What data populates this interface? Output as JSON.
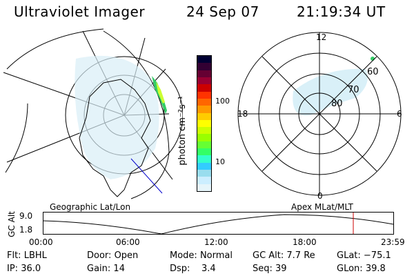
{
  "header": {
    "instrument": "Ultraviolet Imager",
    "date": "24 Sep 07",
    "time": "21:19:34 UT"
  },
  "colorbar": {
    "unit_label": "photon cm⁻²s⁻¹",
    "ticks": [
      "100",
      "10"
    ],
    "colors": [
      "#000033",
      "#330033",
      "#660033",
      "#990033",
      "#cc0000",
      "#ff3300",
      "#ff6600",
      "#ff9900",
      "#ffcc00",
      "#ffff00",
      "#ccff00",
      "#99ff00",
      "#66ff33",
      "#33ff66",
      "#33ffcc",
      "#33ccff",
      "#99ddee",
      "#cceeff",
      "#e6f5fa"
    ]
  },
  "geo_map": {
    "label": "Geographic Lat/Lon"
  },
  "polar_map": {
    "label": "Apex MLat/MLT",
    "mlt_labels": {
      "top": "12",
      "bottom": "0",
      "left": "18",
      "right": "6"
    },
    "lat_labels": [
      "80",
      "70",
      "60"
    ]
  },
  "altitude_plot": {
    "ylabel": "GC Alt",
    "yticks": [
      "9.0",
      "1.8"
    ],
    "xticks": [
      "00:00",
      "06:00",
      "12:00",
      "18:00",
      "23:59"
    ],
    "current_marker_color": "#cc0000"
  },
  "status": {
    "row1": [
      {
        "key": "Flt:",
        "value": "LBHL"
      },
      {
        "key": "Door:",
        "value": "Open"
      },
      {
        "key": "Mode:",
        "value": "Normal"
      },
      {
        "key": "GC Alt:",
        "value": "7.7 Re"
      },
      {
        "key": "GLat:",
        "value": "−75.1"
      }
    ],
    "row2": [
      {
        "key": "IP:",
        "value": "36.0"
      },
      {
        "key": "Gain:",
        "value": "14"
      },
      {
        "key": "Dsp:",
        "value": "3.4"
      },
      {
        "key": "Seq:",
        "value": "39"
      },
      {
        "key": "GLon:",
        "value": "39.8"
      }
    ]
  }
}
